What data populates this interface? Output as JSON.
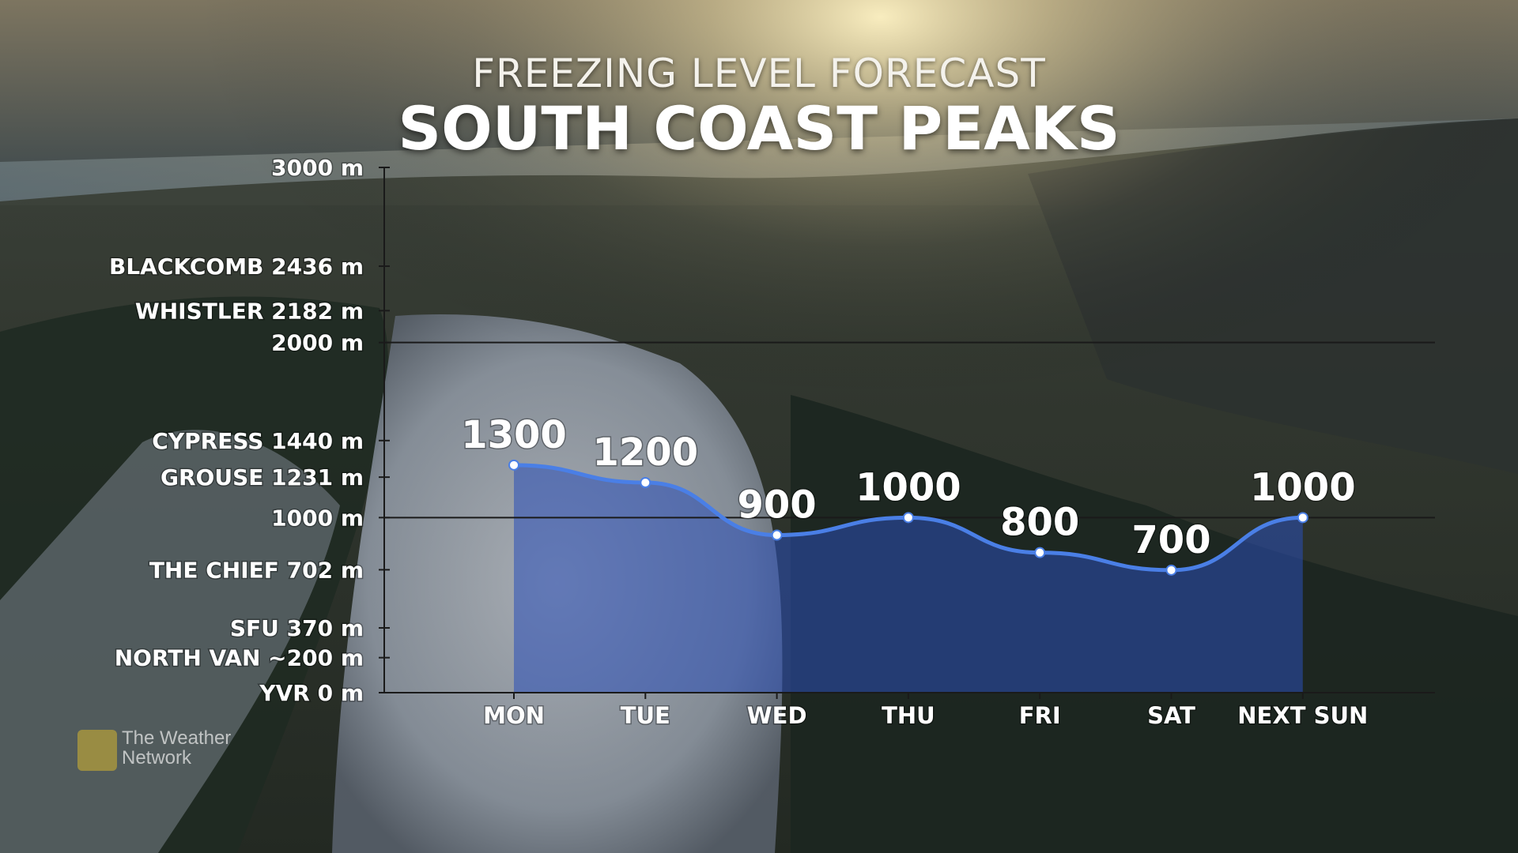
{
  "title": "FREEZING LEVEL FORECAST",
  "subtitle": "SOUTH COAST PEAKS",
  "branding": {
    "line1": "The Weather",
    "line2": "Network"
  },
  "colors": {
    "line": "#4a7fe6",
    "fill": "#2a4fb8",
    "text": "#ffffff",
    "brand": "#d6b430"
  },
  "chart_data": {
    "type": "area",
    "title": "FREEZING LEVEL FORECAST",
    "subtitle": "SOUTH COAST PEAKS",
    "categories": [
      "MON",
      "TUE",
      "WED",
      "THU",
      "FRI",
      "SAT",
      "NEXT SUN"
    ],
    "series": [
      {
        "values": [
          1300,
          1200,
          900,
          1000,
          800,
          700,
          1000
        ]
      }
    ],
    "data_labels": [
      "1300",
      "1200",
      "900",
      "1000",
      "800",
      "700",
      "1000"
    ],
    "unit": "m",
    "ylim": [
      0,
      3000
    ],
    "y_ticks": [
      {
        "label": "3000 m",
        "value": 3000
      },
      {
        "label": "2000 m",
        "value": 2000
      },
      {
        "label": "1000 m",
        "value": 1000
      }
    ],
    "reference_levels": [
      {
        "label": "BLACKCOMB 2436 m",
        "value": 2436
      },
      {
        "label": "WHISTLER 2182 m",
        "value": 2182
      },
      {
        "label": "CYPRESS 1440 m",
        "value": 1440
      },
      {
        "label": "GROUSE 1231 m",
        "value": 1231
      },
      {
        "label": "THE CHIEF 702 m",
        "value": 702
      },
      {
        "label": "SFU 370 m",
        "value": 370
      },
      {
        "label": "NORTH VAN ~200 m",
        "value": 200
      },
      {
        "label": "YVR 0 m",
        "value": 0
      }
    ],
    "gridlines_at": [
      1000,
      2000
    ],
    "legend": "none"
  }
}
